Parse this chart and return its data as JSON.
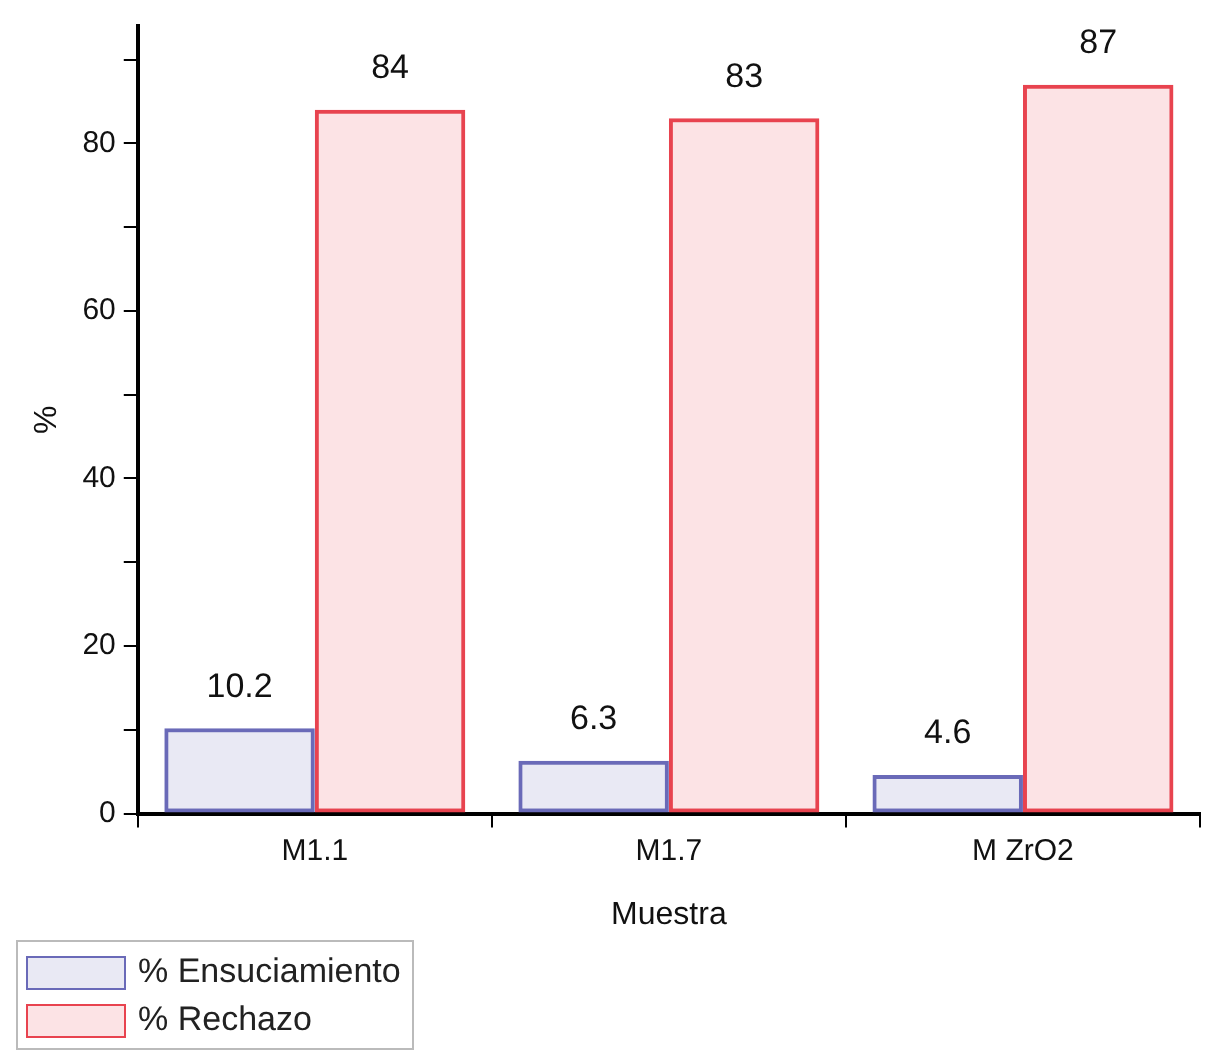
{
  "chart_data": {
    "type": "bar",
    "xlabel": "Muestra",
    "ylabel": "%",
    "categories": [
      "M1.1",
      "M1.7",
      "M ZrO2"
    ],
    "series": [
      {
        "name": "% Ensuciamiento",
        "color": "#6a6ab8",
        "values": [
          10.2,
          6.3,
          4.6
        ]
      },
      {
        "name": "% Rechazo",
        "color": "#e8434f",
        "values": [
          84,
          83,
          87
        ]
      }
    ],
    "ylim": [
      0,
      94
    ],
    "yticks": [
      0,
      {
        "value": 10,
        "label": null
      },
      20,
      {
        "value": 30,
        "label": null
      },
      40,
      {
        "value": 50,
        "label": null
      },
      60,
      {
        "value": 70,
        "label": null
      },
      80,
      {
        "value": 90,
        "label": null
      }
    ],
    "grid": false,
    "legend": "bottom left",
    "data_labels": true
  }
}
